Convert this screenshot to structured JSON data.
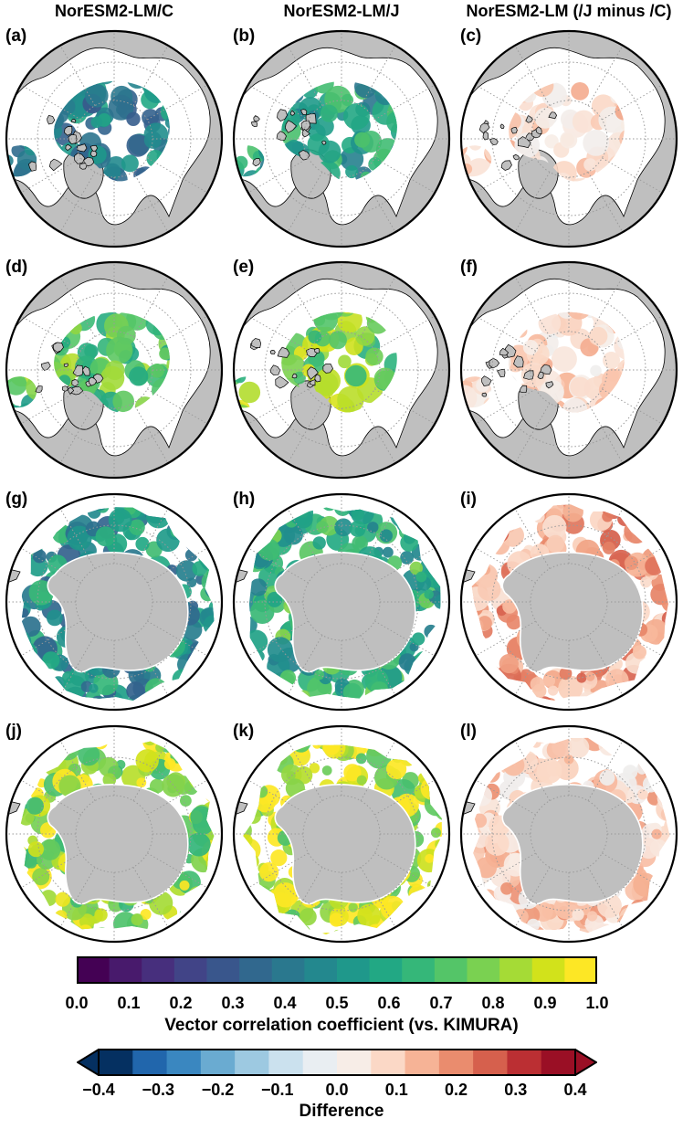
{
  "column_titles": [
    "NorESM2-LM/C",
    "NorESM2-LM/J",
    "NorESM2-LM (/J minus /C)"
  ],
  "panels": [
    {
      "label": "(a)",
      "hemisphere": "north",
      "kind": "corr",
      "level": 0.45
    },
    {
      "label": "(b)",
      "hemisphere": "north",
      "kind": "corr",
      "level": 0.55
    },
    {
      "label": "(c)",
      "hemisphere": "north",
      "kind": "diff",
      "level": 0.08
    },
    {
      "label": "(d)",
      "hemisphere": "north",
      "kind": "corr",
      "level": 0.72
    },
    {
      "label": "(e)",
      "hemisphere": "north",
      "kind": "corr",
      "level": 0.8
    },
    {
      "label": "(f)",
      "hemisphere": "north",
      "kind": "diff",
      "level": 0.07
    },
    {
      "label": "(g)",
      "hemisphere": "south",
      "kind": "corr",
      "level": 0.5
    },
    {
      "label": "(h)",
      "hemisphere": "south",
      "kind": "corr",
      "level": 0.62
    },
    {
      "label": "(i)",
      "hemisphere": "south",
      "kind": "diff",
      "level": 0.15
    },
    {
      "label": "(j)",
      "hemisphere": "south",
      "kind": "corr",
      "level": 0.85
    },
    {
      "label": "(k)",
      "hemisphere": "south",
      "kind": "corr",
      "level": 0.9
    },
    {
      "label": "(l)",
      "hemisphere": "south",
      "kind": "diff",
      "level": 0.08
    }
  ],
  "colorbar_corr": {
    "title": "Vector correlation coefficient (vs. KIMURA)",
    "ticks": [
      "0.0",
      "0.1",
      "0.2",
      "0.3",
      "0.4",
      "0.5",
      "0.6",
      "0.7",
      "0.8",
      "0.9",
      "1.0"
    ],
    "range": [
      0.0,
      1.0
    ],
    "colors": [
      "#440154",
      "#481a6c",
      "#472f7d",
      "#414487",
      "#39568c",
      "#31688e",
      "#2a788e",
      "#23888e",
      "#1f988b",
      "#22a884",
      "#35b779",
      "#54c568",
      "#7ad151",
      "#a5db36",
      "#d2e21b",
      "#fde725"
    ]
  },
  "colorbar_diff": {
    "title": "Difference",
    "ticks": [
      "−0.4",
      "−0.3",
      "−0.2",
      "−0.1",
      "0.0",
      "0.1",
      "0.2",
      "0.3",
      "0.4"
    ],
    "range": [
      -0.4,
      0.4
    ],
    "colors": [
      "#053061",
      "#2166ac",
      "#3a87c0",
      "#6aabd1",
      "#9dc9e1",
      "#cbe1ee",
      "#e9eef2",
      "#f7ede7",
      "#fbd8c6",
      "#f6b396",
      "#ea8c6e",
      "#d6604d",
      "#bb2f33",
      "#9a0f25"
    ]
  },
  "colors": {
    "land": "#bfbfbf",
    "coast": "#000000",
    "ocean": "#ffffff",
    "graticule": "#9a9a9a"
  }
}
